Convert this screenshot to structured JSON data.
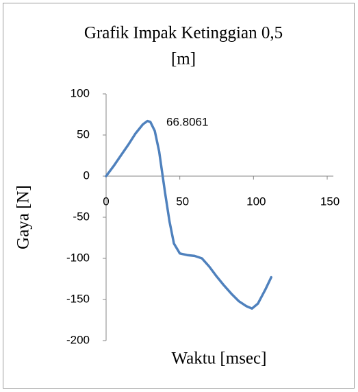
{
  "chart_data": {
    "type": "line",
    "title": [
      "Grafik Impak Ketinggian  0,5",
      "[m]"
    ],
    "xlabel": "Waktu [msec]",
    "ylabel": "Gaya [N]",
    "annotation": "66.8061",
    "series": [
      {
        "name": "Gaya",
        "color": "#4f81bd",
        "x": [
          0,
          5,
          10,
          15,
          20,
          25,
          28,
          30,
          33,
          36,
          38,
          40,
          43,
          46,
          50,
          55,
          60,
          65,
          70,
          75,
          80,
          85,
          90,
          95,
          99,
          103,
          108,
          112
        ],
        "values": [
          0,
          12,
          25,
          38,
          52,
          63,
          67,
          66,
          55,
          30,
          5,
          -20,
          -55,
          -82,
          -94,
          -96,
          -97,
          -100,
          -110,
          -122,
          -133,
          -143,
          -152,
          -158,
          -161,
          -155,
          -138,
          -123
        ]
      }
    ],
    "xlim": [
      0,
      150
    ],
    "xticks": [
      0,
      50,
      100,
      150
    ],
    "ylim": [
      -200,
      100
    ],
    "yticks": [
      -200,
      -150,
      -100,
      -50,
      0,
      50,
      100
    ],
    "grid": false
  }
}
